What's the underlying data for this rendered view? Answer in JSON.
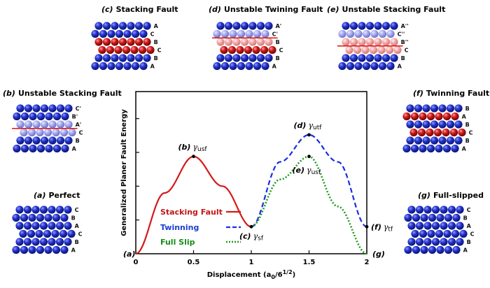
{
  "colors": {
    "atom_blue": "#1f2ec8",
    "atom_red": "#d31010",
    "atom_light_blue": "#9a9ee8",
    "atom_light_red": "#f2a0a0",
    "stacking": "#d41a1a",
    "twinning": "#1a2ee0",
    "full_slip": "#1f9a1f",
    "legend_stacking": "#c01818",
    "legend_twinning": "#1a3fd0",
    "legend_full": "#1a8a1a"
  },
  "panels": {
    "c": {
      "label": "(c)",
      "title": "Stacking Fault",
      "layers": [
        "A",
        "C",
        "B",
        "C",
        "B",
        "A"
      ]
    },
    "d": {
      "label": "(d)",
      "title": "Unstable Twining Fault",
      "layers": [
        "A'",
        "C'",
        "B",
        "C",
        "B",
        "A"
      ]
    },
    "e": {
      "label": "(e)",
      "title": "Unstable Stacking Fault",
      "layers": [
        "A''",
        "C''",
        "B''",
        "C",
        "B",
        "A"
      ]
    },
    "b": {
      "label": "(b)",
      "title": "Unstable Stacking Fault",
      "layers": [
        "C'",
        "B'",
        "A'",
        "C",
        "B",
        "A"
      ]
    },
    "a": {
      "label": "(a)",
      "title": "Perfect",
      "layers": [
        "C",
        "B",
        "A",
        "C",
        "B",
        "A"
      ]
    },
    "f": {
      "label": "(f)",
      "title": "Twinning Fault",
      "layers": [
        "B",
        "A",
        "B",
        "C",
        "B",
        "A"
      ]
    },
    "g": {
      "label": "(g)",
      "title": "Full-slipped",
      "layers": [
        "C",
        "B",
        "A",
        "C",
        "B",
        "A"
      ]
    }
  },
  "chart_data": {
    "type": "line",
    "xlabel": "Displacement (a",
    "xlabel_sub": "0",
    "xlabel_mid": "/6",
    "xlabel_sup": "1/2",
    "xlabel_end": ")",
    "ylabel": "Generalized Planer Fault Energy",
    "xlim": [
      0,
      2
    ],
    "ylim": [
      0,
      1.2
    ],
    "x_ticks": [
      0,
      0.5,
      1,
      1.5,
      2
    ],
    "x_tick_labels": [
      "0",
      "0.5",
      "1",
      "1.5",
      "2"
    ],
    "y_ticks": [
      0.25,
      0.5,
      0.75,
      1.0
    ],
    "series": [
      {
        "name": "Stacking Fault",
        "style": "solid",
        "x": [
          0,
          0.25,
          0.5,
          0.75,
          1.0
        ],
        "y": [
          0,
          0.45,
          0.72,
          0.5,
          0.2
        ]
      },
      {
        "name": "Twinning",
        "style": "dashed",
        "x": [
          1.0,
          1.25,
          1.5,
          1.75,
          2.0
        ],
        "y": [
          0.2,
          0.68,
          0.88,
          0.68,
          0.2
        ]
      },
      {
        "name": "Full Slip",
        "style": "dotted",
        "x": [
          1.0,
          1.25,
          1.5,
          1.75,
          2.0
        ],
        "y": [
          0.2,
          0.55,
          0.72,
          0.35,
          0
        ]
      }
    ],
    "annotations": [
      {
        "tag": "(b)",
        "symbol": "γ",
        "sub": "usf",
        "x": 0.5,
        "y": 0.72,
        "pos": "above"
      },
      {
        "tag": "(c)",
        "symbol": "γ",
        "sub": "sf",
        "x": 1.0,
        "y": 0.2,
        "pos": "below"
      },
      {
        "tag": "(d)",
        "symbol": "γ",
        "sub": "utf",
        "x": 1.5,
        "y": 0.88,
        "pos": "above"
      },
      {
        "tag": "(e)",
        "symbol": "γ",
        "sub": "usf",
        "x": 1.5,
        "y": 0.72,
        "pos": "below"
      },
      {
        "tag": "(f)",
        "symbol": "γ",
        "sub": "tf",
        "x": 2.0,
        "y": 0.2,
        "pos": "right"
      }
    ],
    "corner_labels": {
      "origin": "(a)",
      "end": "(g)"
    }
  }
}
